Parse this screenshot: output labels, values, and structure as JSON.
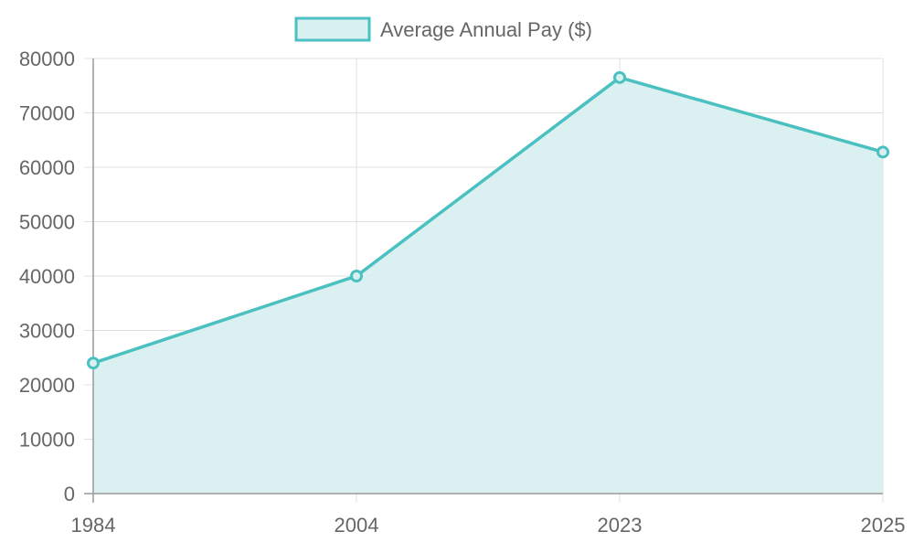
{
  "chart_data": {
    "type": "area",
    "title": "",
    "xlabel": "",
    "ylabel": "",
    "categories": [
      "1984",
      "2004",
      "2023",
      "2025"
    ],
    "series": [
      {
        "name": "Average Annual Pay ($)",
        "values": [
          24000,
          40000,
          76500,
          62800
        ]
      }
    ],
    "ylim": [
      0,
      80000
    ],
    "yticks": [
      "0",
      "10000",
      "20000",
      "30000",
      "40000",
      "50000",
      "60000",
      "70000",
      "80000"
    ],
    "grid": true,
    "legend": "top",
    "colors": {
      "line": "#4bc0c0",
      "fill": "#d9f0f0",
      "grid": "#e0e0e0",
      "axis": "#999999"
    }
  }
}
